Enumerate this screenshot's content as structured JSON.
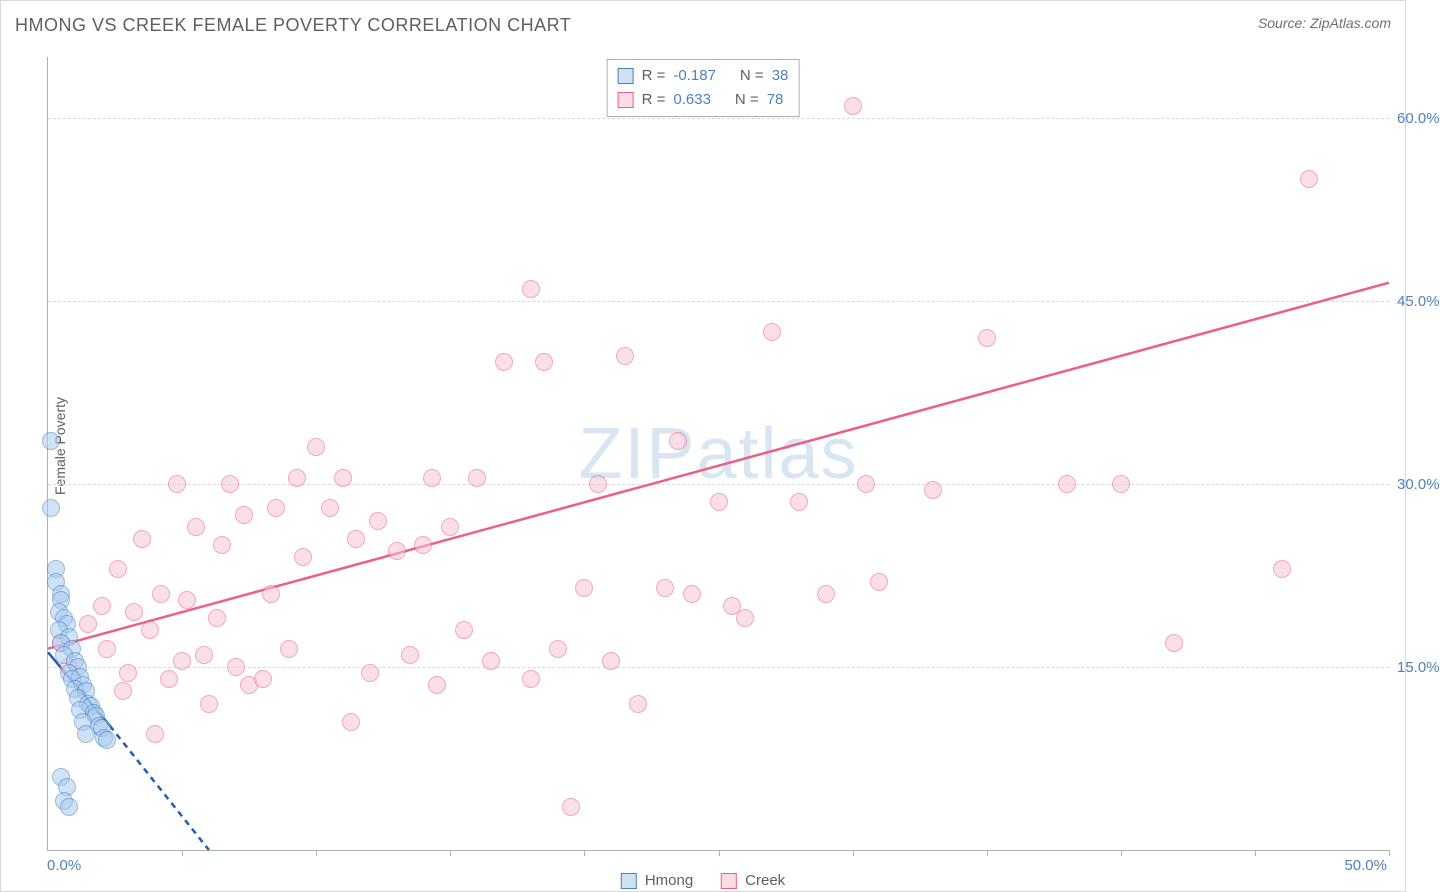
{
  "chart": {
    "type": "scatter-correlation",
    "title": "HMONG VS CREEK FEMALE POVERTY CORRELATION CHART",
    "source": "Source: ZipAtlas.com",
    "watermark": "ZIPatlas",
    "y_axis_title": "Female Poverty",
    "background_color": "#ffffff",
    "grid_color": "#d9d9d9",
    "axis_color": "#b0b0b0",
    "label_color": "#4f81bd",
    "text_color": "#5f5f5f",
    "title_fontsize": 18,
    "label_fontsize": 15,
    "axis_title_fontsize": 14,
    "x_range": [
      0,
      50
    ],
    "y_range": [
      0,
      65
    ],
    "x_origin_label": "0.0%",
    "x_max_label": "50.0%",
    "y_grid_ticks": [
      {
        "value": 15,
        "label": "15.0%"
      },
      {
        "value": 30,
        "label": "30.0%"
      },
      {
        "value": 45,
        "label": "45.0%"
      },
      {
        "value": 60,
        "label": "60.0%"
      }
    ],
    "x_tick_positions": [
      5,
      10,
      15,
      20,
      25,
      30,
      35,
      40,
      45,
      50
    ],
    "marker_radius": 9,
    "marker_opacity": 0.55
  },
  "correlation": {
    "rows": [
      {
        "swatch_fill": "#cfe2f3",
        "swatch_border": "#4f81bd",
        "r_label": "R =",
        "r_value": "-0.187",
        "n_label": "N =",
        "n_value": "38"
      },
      {
        "swatch_fill": "#fbdde4",
        "swatch_border": "#ec5f86",
        "r_label": "R =",
        "r_value": "0.633",
        "n_label": "N =",
        "n_value": "78"
      }
    ]
  },
  "legend": {
    "items": [
      {
        "label": "Hmong",
        "swatch_fill": "#cfe2f3",
        "swatch_border": "#4f81bd"
      },
      {
        "label": "Creek",
        "swatch_fill": "#fbdde4",
        "swatch_border": "#ec5f86"
      }
    ]
  },
  "series": {
    "hmong": {
      "color_fill": "#a8cbef",
      "color_stroke": "#4f81bd",
      "trend_line_color": "#1f5fb0",
      "trend_solid": {
        "x1": 0,
        "y1": 16.2,
        "x2": 2.3,
        "y2": 10.2
      },
      "trend_dash": {
        "x1": 2.3,
        "y1": 10.2,
        "x2": 6.0,
        "y2": 0
      },
      "points": [
        [
          0.1,
          33.5
        ],
        [
          0.1,
          28.0
        ],
        [
          0.3,
          23.0
        ],
        [
          0.3,
          22.0
        ],
        [
          0.5,
          21.0
        ],
        [
          0.5,
          20.5
        ],
        [
          0.4,
          19.5
        ],
        [
          0.6,
          19.0
        ],
        [
          0.7,
          18.5
        ],
        [
          0.4,
          18.0
        ],
        [
          0.8,
          17.5
        ],
        [
          0.5,
          17.0
        ],
        [
          0.9,
          16.5
        ],
        [
          0.6,
          16.0
        ],
        [
          1.0,
          15.5
        ],
        [
          1.1,
          15.0
        ],
        [
          0.8,
          14.5
        ],
        [
          1.2,
          14.2
        ],
        [
          0.9,
          14.0
        ],
        [
          1.3,
          13.5
        ],
        [
          1.0,
          13.2
        ],
        [
          1.4,
          13.0
        ],
        [
          1.1,
          12.5
        ],
        [
          1.5,
          12.0
        ],
        [
          1.6,
          11.8
        ],
        [
          1.2,
          11.5
        ],
        [
          1.7,
          11.2
        ],
        [
          1.8,
          11.0
        ],
        [
          1.3,
          10.5
        ],
        [
          1.9,
          10.2
        ],
        [
          2.0,
          10.0
        ],
        [
          1.4,
          9.5
        ],
        [
          2.1,
          9.2
        ],
        [
          2.2,
          9.0
        ],
        [
          0.5,
          6.0
        ],
        [
          0.7,
          5.2
        ],
        [
          0.6,
          4.0
        ],
        [
          0.8,
          3.5
        ]
      ]
    },
    "creek": {
      "color_fill": "#f9c6d3",
      "color_stroke": "#ec5f86",
      "trend_line_color": "#ec5f86",
      "trend_solid": {
        "x1": 0,
        "y1": 16.5,
        "x2": 50,
        "y2": 46.5
      },
      "points": [
        [
          0.5,
          17.0
        ],
        [
          0.8,
          15.0
        ],
        [
          2.6,
          23.0
        ],
        [
          1.5,
          18.5
        ],
        [
          2.0,
          20.0
        ],
        [
          2.2,
          16.5
        ],
        [
          2.8,
          13.0
        ],
        [
          3.0,
          14.5
        ],
        [
          3.2,
          19.5
        ],
        [
          3.5,
          25.5
        ],
        [
          3.8,
          18.0
        ],
        [
          4.0,
          9.5
        ],
        [
          4.2,
          21.0
        ],
        [
          4.5,
          14.0
        ],
        [
          4.8,
          30.0
        ],
        [
          5.0,
          15.5
        ],
        [
          5.2,
          20.5
        ],
        [
          5.5,
          26.5
        ],
        [
          5.8,
          16.0
        ],
        [
          6.0,
          12.0
        ],
        [
          6.3,
          19.0
        ],
        [
          6.5,
          25.0
        ],
        [
          6.8,
          30.0
        ],
        [
          7.0,
          15.0
        ],
        [
          7.3,
          27.5
        ],
        [
          7.5,
          13.5
        ],
        [
          8.0,
          14.0
        ],
        [
          8.3,
          21.0
        ],
        [
          8.5,
          28.0
        ],
        [
          9.0,
          16.5
        ],
        [
          9.3,
          30.5
        ],
        [
          9.5,
          24.0
        ],
        [
          10.0,
          33.0
        ],
        [
          10.5,
          28.0
        ],
        [
          11.0,
          30.5
        ],
        [
          11.3,
          10.5
        ],
        [
          11.5,
          25.5
        ],
        [
          12.0,
          14.5
        ],
        [
          12.3,
          27.0
        ],
        [
          13.0,
          24.5
        ],
        [
          13.5,
          16.0
        ],
        [
          14.0,
          25.0
        ],
        [
          14.3,
          30.5
        ],
        [
          14.5,
          13.5
        ],
        [
          15.0,
          26.5
        ],
        [
          15.5,
          18.0
        ],
        [
          16.0,
          30.5
        ],
        [
          16.5,
          15.5
        ],
        [
          17.0,
          40.0
        ],
        [
          18.0,
          46.0
        ],
        [
          18.0,
          14.0
        ],
        [
          18.5,
          40.0
        ],
        [
          19.0,
          16.5
        ],
        [
          19.5,
          3.5
        ],
        [
          20.0,
          21.5
        ],
        [
          20.5,
          30.0
        ],
        [
          21.0,
          15.5
        ],
        [
          21.5,
          40.5
        ],
        [
          22.0,
          12.0
        ],
        [
          23.0,
          21.5
        ],
        [
          23.5,
          33.5
        ],
        [
          24.0,
          21.0
        ],
        [
          25.0,
          28.5
        ],
        [
          25.5,
          20.0
        ],
        [
          26.0,
          19.0
        ],
        [
          27.0,
          42.5
        ],
        [
          28.0,
          28.5
        ],
        [
          29.0,
          21.0
        ],
        [
          30.0,
          61.0
        ],
        [
          30.5,
          30.0
        ],
        [
          31.0,
          22.0
        ],
        [
          33.0,
          29.5
        ],
        [
          35.0,
          42.0
        ],
        [
          38.0,
          30.0
        ],
        [
          42.0,
          17.0
        ],
        [
          40.0,
          30.0
        ],
        [
          47.0,
          55.0
        ],
        [
          46.0,
          23.0
        ]
      ]
    }
  }
}
